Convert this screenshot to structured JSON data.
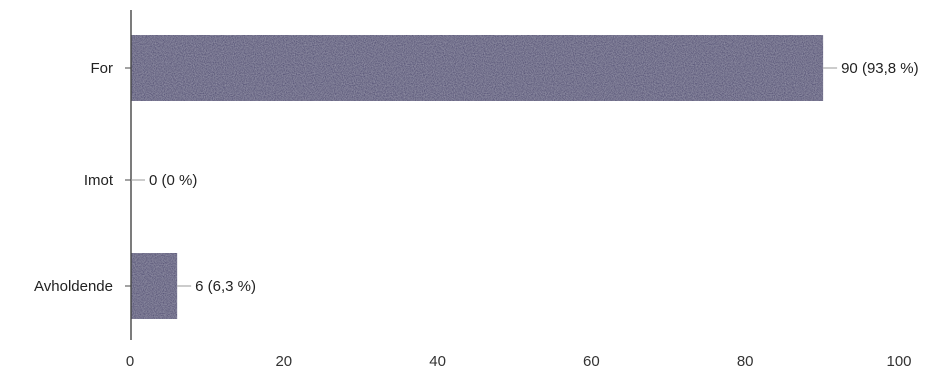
{
  "chart_data": {
    "type": "bar",
    "orientation": "horizontal",
    "categories": [
      "For",
      "Imot",
      "Avholdende"
    ],
    "values": [
      90,
      0,
      6
    ],
    "data_labels": [
      "90 (93,8 %)",
      "0 (0 %)",
      "6 (6,3 %)"
    ],
    "xlim": [
      0,
      100
    ],
    "xticks": [
      0,
      20,
      40,
      60,
      80,
      100
    ],
    "xtick_labels": [
      "0",
      "20",
      "40",
      "60",
      "80",
      "100"
    ],
    "grid": false,
    "legend": "none",
    "bar_color": "#3a3566",
    "axis_color": "#444444",
    "leader_color": "#999999"
  }
}
